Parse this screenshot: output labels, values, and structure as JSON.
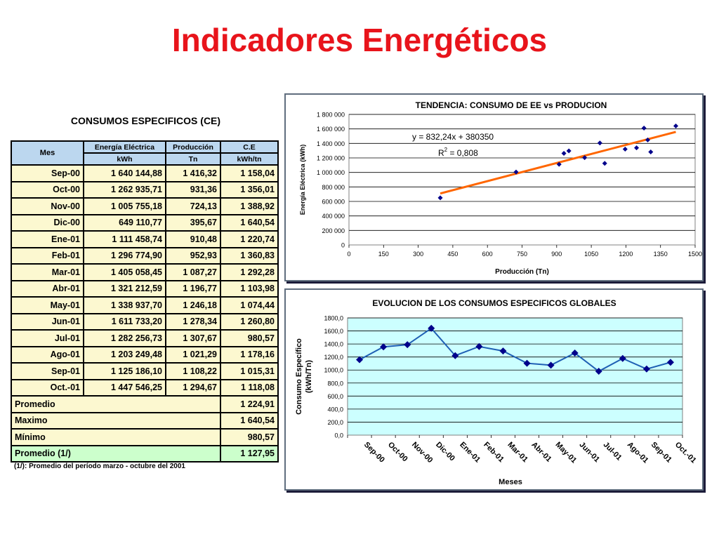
{
  "page_title": "Indicadores Energéticos",
  "table": {
    "title": "CONSUMOS ESPECIFICOS (CE)",
    "headers": {
      "mes": "Mes",
      "energia": "Energía Eléctrica",
      "energia_unit": "kWh",
      "produccion": "Producción",
      "produccion_unit": "Tn",
      "ce": "C.E",
      "ce_unit": "kWh/tn"
    },
    "rows": [
      {
        "mes": "Sep-00",
        "energia": "1 640 144,88",
        "produccion": "1 416,32",
        "ce": "1 158,04"
      },
      {
        "mes": "Oct-00",
        "energia": "1 262 935,71",
        "produccion": "931,36",
        "ce": "1 356,01"
      },
      {
        "mes": "Nov-00",
        "energia": "1 005 755,18",
        "produccion": "724,13",
        "ce": "1 388,92"
      },
      {
        "mes": "Dic-00",
        "energia": "649 110,77",
        "produccion": "395,67",
        "ce": "1 640,54"
      },
      {
        "mes": "Ene-01",
        "energia": "1 111 458,74",
        "produccion": "910,48",
        "ce": "1 220,74"
      },
      {
        "mes": "Feb-01",
        "energia": "1 296 774,90",
        "produccion": "952,93",
        "ce": "1 360,83"
      },
      {
        "mes": "Mar-01",
        "energia": "1 405 058,45",
        "produccion": "1 087,27",
        "ce": "1 292,28"
      },
      {
        "mes": "Abr-01",
        "energia": "1 321 212,59",
        "produccion": "1 196,77",
        "ce": "1 103,98"
      },
      {
        "mes": "May-01",
        "energia": "1 338 937,70",
        "produccion": "1 246,18",
        "ce": "1 074,44"
      },
      {
        "mes": "Jun-01",
        "energia": "1 611 733,20",
        "produccion": "1 278,34",
        "ce": "1 260,80"
      },
      {
        "mes": "Jul-01",
        "energia": "1 282 256,73",
        "produccion": "1 307,67",
        "ce": "980,57"
      },
      {
        "mes": "Ago-01",
        "energia": "1 203 249,48",
        "produccion": "1 021,29",
        "ce": "1 178,16"
      },
      {
        "mes": "Sep-01",
        "energia": "1 125 186,10",
        "produccion": "1 108,22",
        "ce": "1 015,31"
      },
      {
        "mes": "Oct.-01",
        "energia": "1 447 546,25",
        "produccion": "1 294,67",
        "ce": "1 118,08"
      }
    ],
    "summary": [
      {
        "label": "Promedio",
        "value": "1 224,91"
      },
      {
        "label": "Maximo",
        "value": "1 640,54"
      },
      {
        "label": "Mínimo",
        "value": "980,57"
      },
      {
        "label": "Promedio (1/)",
        "value": "1 127,95"
      }
    ],
    "note": "(1/): Promedio del período marzo - octubre del 2001"
  },
  "chart_data": [
    {
      "type": "scatter",
      "title": "TENDENCIA: CONSUMO DE EE vs PRODUCION",
      "xlabel": "Producción (Tn)",
      "ylabel": "Energía Eléctrica (kWh)",
      "xlim": [
        0,
        1500
      ],
      "ylim": [
        0,
        1800000
      ],
      "x_ticks": [
        "0",
        "150",
        "300",
        "450",
        "600",
        "750",
        "900",
        "1050",
        "1200",
        "1350",
        "1500"
      ],
      "y_ticks": [
        "0",
        "200 000",
        "400 000",
        "600 000",
        "800 000",
        "1 000 000",
        "1 200 000",
        "1 400 000",
        "1 600 000",
        "1 800 000"
      ],
      "points": [
        {
          "x": 395.67,
          "y": 649110.77
        },
        {
          "x": 724.13,
          "y": 1005755.18
        },
        {
          "x": 910.48,
          "y": 1111458.74
        },
        {
          "x": 931.36,
          "y": 1262935.71
        },
        {
          "x": 952.93,
          "y": 1296774.9
        },
        {
          "x": 1021.29,
          "y": 1203249.48
        },
        {
          "x": 1087.27,
          "y": 1405058.45
        },
        {
          "x": 1108.22,
          "y": 1125186.1
        },
        {
          "x": 1196.77,
          "y": 1321212.59
        },
        {
          "x": 1246.18,
          "y": 1338937.7
        },
        {
          "x": 1278.34,
          "y": 1611733.2
        },
        {
          "x": 1294.67,
          "y": 1447546.25
        },
        {
          "x": 1307.67,
          "y": 1282256.73
        },
        {
          "x": 1416.32,
          "y": 1640144.88
        }
      ],
      "trendline": {
        "slope": 832.24,
        "intercept": 380350,
        "x_range": [
          395.67,
          1416.32
        ]
      },
      "equation": "y = 832,24x + 380350",
      "r2_label": "R",
      "r2_exp": "2",
      "r2_value": " = 0,808",
      "marker_color": "#00008b",
      "trend_color": "#ff6600",
      "grid": true
    },
    {
      "type": "line",
      "title": "EVOLUCION DE LOS CONSUMOS ESPECIFICOS GLOBALES",
      "xlabel": "Meses",
      "ylabel_line1": "Consumo Específico",
      "ylabel_line2": "(kWh/Tn)",
      "categories": [
        "Sep-00",
        "Oct-00",
        "Nov-00",
        "Dic-00",
        "Ene-01",
        "Feb-01",
        "Mar-01",
        "Abr-01",
        "May-01",
        "Jun-01",
        "Jul-01",
        "Ago-01",
        "Sep-01",
        "Oct.-01"
      ],
      "values": [
        1158.04,
        1356.01,
        1388.92,
        1640.54,
        1220.74,
        1360.83,
        1292.28,
        1103.98,
        1074.44,
        1260.8,
        980.57,
        1178.16,
        1015.31,
        1118.08
      ],
      "ylim": [
        0,
        1800
      ],
      "y_ticks": [
        "0,0",
        "200,0",
        "400,0",
        "600,0",
        "800,0",
        "1000,0",
        "1200,0",
        "1400,0",
        "1600,0",
        "1800,0"
      ],
      "plot_bg": "#ccffff",
      "line_color": "#1f5fb4",
      "marker_color": "#00008b",
      "grid": true
    }
  ]
}
